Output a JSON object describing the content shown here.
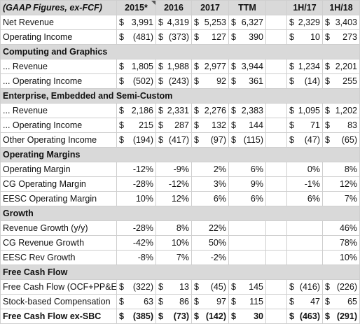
{
  "columns": [
    {
      "label": "2015*",
      "note": true
    },
    {
      "label": "2016"
    },
    {
      "label": "2017"
    },
    {
      "label": "TTM"
    },
    {
      "label": ""
    },
    {
      "label": "1H/17"
    },
    {
      "label": "1H/18"
    }
  ],
  "header_label": "(GAAP Figures, ex-FCF)",
  "rows": [
    {
      "type": "data",
      "label": "Net Revenue",
      "fmt": "acc",
      "cells": [
        "3,991",
        "4,319",
        "5,253",
        "6,327",
        "",
        "2,329",
        "3,403"
      ]
    },
    {
      "type": "data",
      "label": "Operating Income",
      "fmt": "acc",
      "cells": [
        "(481)",
        "(373)",
        "127",
        "390",
        "",
        "10",
        "273"
      ]
    },
    {
      "type": "section",
      "label": "Computing and Graphics"
    },
    {
      "type": "data",
      "label": "... Revenue",
      "fmt": "acc",
      "cells": [
        "1,805",
        "1,988",
        "2,977",
        "3,944",
        "",
        "1,234",
        "2,201"
      ]
    },
    {
      "type": "data",
      "label": "... Operating Income",
      "fmt": "acc",
      "cells": [
        "(502)",
        "(243)",
        "92",
        "361",
        "",
        "(14)",
        "255"
      ]
    },
    {
      "type": "section",
      "label": "Enterprise, Embedded and Semi-Custom"
    },
    {
      "type": "data",
      "label": "... Revenue",
      "fmt": "acc",
      "cells": [
        "2,186",
        "2,331",
        "2,276",
        "2,383",
        "",
        "1,095",
        "1,202"
      ]
    },
    {
      "type": "data",
      "label": "... Operating Income",
      "fmt": "acc",
      "cells": [
        "215",
        "287",
        "132",
        "144",
        "",
        "71",
        "83"
      ]
    },
    {
      "type": "data",
      "label": "Other Operating Income",
      "fmt": "acc",
      "cells": [
        "(194)",
        "(417)",
        "(97)",
        "(115)",
        "",
        "(47)",
        "(65)"
      ]
    },
    {
      "type": "section",
      "label": "Operating Margins"
    },
    {
      "type": "data",
      "label": "Operating Margin",
      "fmt": "pct",
      "cells": [
        "-12%",
        "-9%",
        "2%",
        "6%",
        "",
        "0%",
        "8%"
      ]
    },
    {
      "type": "data",
      "label": "CG Operating Margin",
      "fmt": "pct",
      "cells": [
        "-28%",
        "-12%",
        "3%",
        "9%",
        "",
        "-1%",
        "12%"
      ]
    },
    {
      "type": "data",
      "label": "EESC Operating Margin",
      "fmt": "pct",
      "cells": [
        "10%",
        "12%",
        "6%",
        "6%",
        "",
        "6%",
        "7%"
      ]
    },
    {
      "type": "section",
      "label": "Growth"
    },
    {
      "type": "data",
      "label": "Revenue Growth (y/y)",
      "fmt": "pct",
      "cells": [
        "-28%",
        "8%",
        "22%",
        "",
        "",
        "",
        "46%"
      ]
    },
    {
      "type": "data",
      "label": "CG Revenue Growth",
      "fmt": "pct",
      "cells": [
        "-42%",
        "10%",
        "50%",
        "",
        "",
        "",
        "78%"
      ]
    },
    {
      "type": "data",
      "label": "EESC Rev Growth",
      "fmt": "pct",
      "cells": [
        "-8%",
        "7%",
        "-2%",
        "",
        "",
        "",
        "10%"
      ]
    },
    {
      "type": "section",
      "label": "Free Cash Flow"
    },
    {
      "type": "data",
      "label": "Free Cash Flow (OCF+PP&E)",
      "fmt": "acc",
      "cells": [
        "(322)",
        "13",
        "(45)",
        "145",
        "",
        "(416)",
        "(226)"
      ]
    },
    {
      "type": "data",
      "label": "Stock-based Compensation",
      "fmt": "acc",
      "cells": [
        "63",
        "86",
        "97",
        "115",
        "",
        "47",
        "65"
      ]
    },
    {
      "type": "data",
      "label": "Free Cash Flow ex-SBC",
      "fmt": "acc",
      "bold": true,
      "cells": [
        "(385)",
        "(73)",
        "(142)",
        "30",
        "",
        "(463)",
        "(291)"
      ]
    }
  ],
  "currency_symbol": "$"
}
